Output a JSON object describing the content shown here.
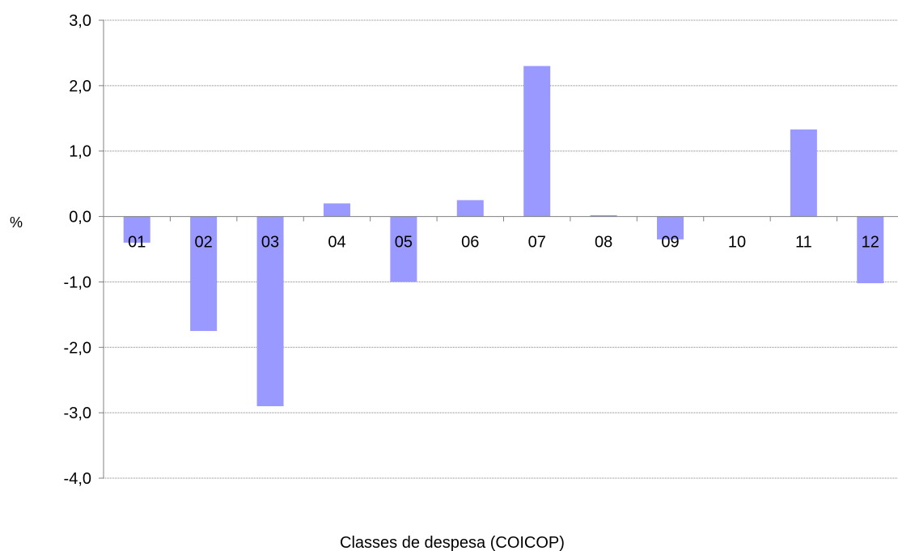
{
  "chart_data": {
    "type": "bar",
    "title": "",
    "xlabel": "Classes de despesa (COICOP)",
    "ylabel": "%",
    "categories": [
      "01",
      "02",
      "03",
      "04",
      "05",
      "06",
      "07",
      "08",
      "09",
      "10",
      "11",
      "12"
    ],
    "values": [
      -0.4,
      -1.75,
      -2.9,
      0.2,
      -1.0,
      0.25,
      2.3,
      0.02,
      -0.35,
      0.0,
      1.33,
      -1.02
    ],
    "ylim": [
      -4.0,
      3.0
    ],
    "yticks": [
      "3,0",
      "2,0",
      "1,0",
      "0,0",
      "-1,0",
      "-2,0",
      "-3,0",
      "-4,0"
    ],
    "ytick_values": [
      3,
      2,
      1,
      0,
      -1,
      -2,
      -3,
      -4
    ],
    "grid": true,
    "legend": "none",
    "colors": {
      "bar": "#9999ff",
      "grid": "#808080",
      "axis": "#808080"
    }
  }
}
